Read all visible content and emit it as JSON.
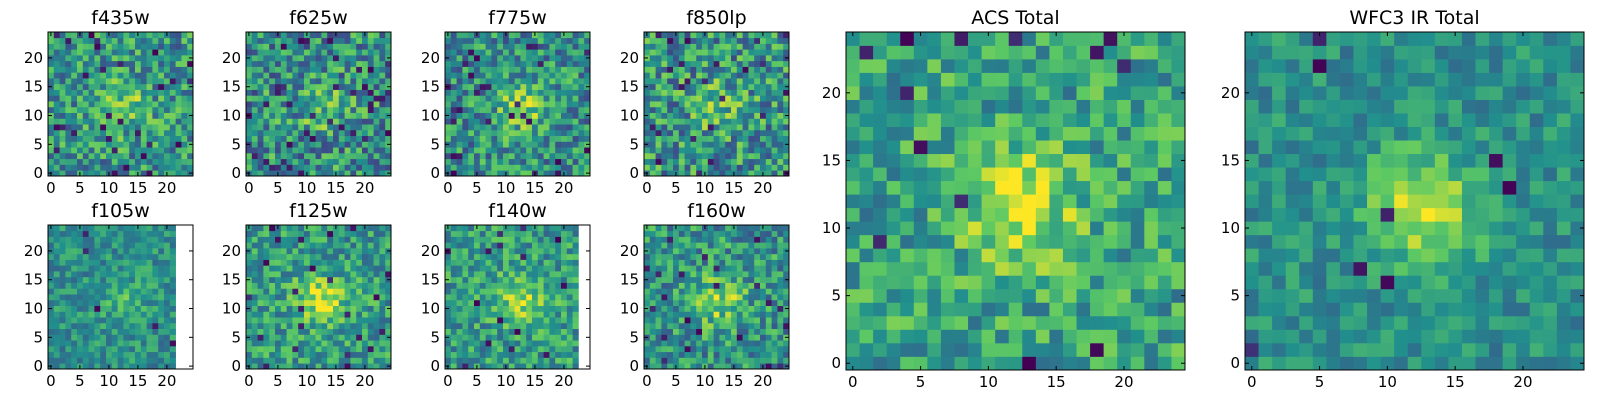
{
  "figure": {
    "description_free": true
  },
  "colormap": {
    "name": "viridis",
    "stops": [
      "#440154",
      "#3b528b",
      "#21908d",
      "#5dc963",
      "#fde725"
    ]
  },
  "chart_data": [
    {
      "type": "heatmap",
      "title": "f435w",
      "grid_size": 25,
      "xticks": [
        "0",
        "5",
        "10",
        "15",
        "20"
      ],
      "yticks": [
        "0",
        "5",
        "10",
        "15",
        "20"
      ],
      "xlim": [
        -0.5,
        24.5
      ],
      "ylim": [
        -0.5,
        24.5
      ],
      "seed": 11,
      "noise": 0.55,
      "peak": 0.25,
      "base": 0.52,
      "blank_from_col": null,
      "dark_rate": 0.04
    },
    {
      "type": "heatmap",
      "title": "f625w",
      "grid_size": 25,
      "xticks": [
        "0",
        "5",
        "10",
        "15",
        "20"
      ],
      "yticks": [
        "0",
        "5",
        "10",
        "15",
        "20"
      ],
      "xlim": [
        -0.5,
        24.5
      ],
      "ylim": [
        -0.5,
        24.5
      ],
      "seed": 23,
      "noise": 0.6,
      "peak": 0.2,
      "base": 0.5,
      "blank_from_col": null,
      "dark_rate": 0.05
    },
    {
      "type": "heatmap",
      "title": "f775w",
      "grid_size": 25,
      "xticks": [
        "0",
        "5",
        "10",
        "15",
        "20"
      ],
      "yticks": [
        "0",
        "5",
        "10",
        "15",
        "20"
      ],
      "xlim": [
        -0.5,
        24.5
      ],
      "ylim": [
        -0.5,
        24.5
      ],
      "seed": 37,
      "noise": 0.55,
      "peak": 0.3,
      "base": 0.5,
      "blank_from_col": null,
      "dark_rate": 0.05
    },
    {
      "type": "heatmap",
      "title": "f850lp",
      "grid_size": 25,
      "xticks": [
        "0",
        "5",
        "10",
        "15",
        "20"
      ],
      "yticks": [
        "0",
        "5",
        "10",
        "15",
        "20"
      ],
      "xlim": [
        -0.5,
        24.5
      ],
      "ylim": [
        -0.5,
        24.5
      ],
      "seed": 41,
      "noise": 0.6,
      "peak": 0.2,
      "base": 0.52,
      "blank_from_col": null,
      "dark_rate": 0.05
    },
    {
      "type": "heatmap",
      "title": "f105w",
      "grid_size": 25,
      "xticks": [
        "0",
        "5",
        "10",
        "15",
        "20"
      ],
      "yticks": [
        "0",
        "5",
        "10",
        "15",
        "20"
      ],
      "xlim": [
        -0.5,
        24.5
      ],
      "ylim": [
        -0.5,
        24.5
      ],
      "seed": 53,
      "noise": 0.35,
      "peak": 0.15,
      "base": 0.5,
      "blank_from_col": 22,
      "dark_rate": 0.015
    },
    {
      "type": "heatmap",
      "title": "f125w",
      "grid_size": 25,
      "xticks": [
        "0",
        "5",
        "10",
        "15",
        "20"
      ],
      "yticks": [
        "0",
        "5",
        "10",
        "15",
        "20"
      ],
      "xlim": [
        -0.5,
        24.5
      ],
      "ylim": [
        -0.5,
        24.5
      ],
      "seed": 67,
      "noise": 0.45,
      "peak": 0.35,
      "base": 0.55,
      "blank_from_col": null,
      "dark_rate": 0.03
    },
    {
      "type": "heatmap",
      "title": "f140w",
      "grid_size": 25,
      "xticks": [
        "0",
        "5",
        "10",
        "15",
        "20"
      ],
      "yticks": [
        "0",
        "5",
        "10",
        "15",
        "20"
      ],
      "xlim": [
        -0.5,
        24.5
      ],
      "ylim": [
        -0.5,
        24.5
      ],
      "seed": 79,
      "noise": 0.45,
      "peak": 0.3,
      "base": 0.55,
      "blank_from_col": 23,
      "dark_rate": 0.03
    },
    {
      "type": "heatmap",
      "title": "f160w",
      "grid_size": 25,
      "xticks": [
        "0",
        "5",
        "10",
        "15",
        "20"
      ],
      "yticks": [
        "0",
        "5",
        "10",
        "15",
        "20"
      ],
      "xlim": [
        -0.5,
        24.5
      ],
      "ylim": [
        -0.5,
        24.5
      ],
      "seed": 83,
      "noise": 0.5,
      "peak": 0.3,
      "base": 0.52,
      "blank_from_col": null,
      "dark_rate": 0.04
    },
    {
      "type": "heatmap",
      "title": "ACS Total",
      "grid_size": 25,
      "xticks": [
        "0",
        "5",
        "10",
        "15",
        "20"
      ],
      "yticks": [
        "0",
        "5",
        "10",
        "15",
        "20"
      ],
      "xlim": [
        -0.5,
        24.5
      ],
      "ylim": [
        -0.5,
        24.5
      ],
      "seed": 97,
      "noise": 0.45,
      "peak": 0.35,
      "base": 0.58,
      "blank_from_col": null,
      "dark_rate": 0.025
    },
    {
      "type": "heatmap",
      "title": "WFC3 IR Total",
      "grid_size": 25,
      "xticks": [
        "0",
        "5",
        "10",
        "15",
        "20"
      ],
      "yticks": [
        "0",
        "5",
        "10",
        "15",
        "20"
      ],
      "xlim": [
        -0.5,
        24.5
      ],
      "ylim": [
        -0.5,
        24.5
      ],
      "seed": 101,
      "noise": 0.3,
      "peak": 0.4,
      "base": 0.5,
      "blank_from_col": null,
      "dark_rate": 0.01
    }
  ]
}
